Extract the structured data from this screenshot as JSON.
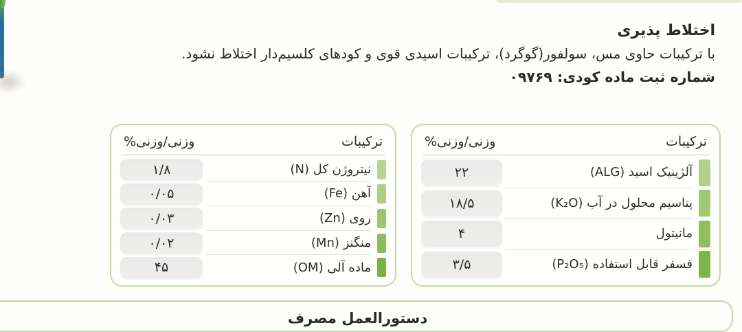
{
  "header": {
    "title": "اختلاط پذیری",
    "body": "با ترکیبات حاوی مس، سولفور(گوگرد)، ترکیبات اسیدی قوی و کودهای کلسیم‌دار اختلاط نشود.",
    "registration_label": "شماره ثبت ماده کودی:",
    "registration_number": "۰۹۷۶۹"
  },
  "composition_tables": {
    "columns": {
      "composition": "ترکیبات",
      "weight_percent": "وزنی/وزنی%"
    },
    "primary": {
      "rows": [
        {
          "label": "آلژینیک اسید (ALG)",
          "value": "۲۲",
          "bar_color": "#afd188"
        },
        {
          "label": "پتاسیم محلول در آب (K₂O)",
          "value": "۱۸/۵",
          "bar_color": "#a1c873"
        },
        {
          "label": "مانیتول",
          "value": "۴",
          "bar_color": "#90bf5d"
        },
        {
          "label": "فسفر قابل استفاده (P₂O₅)",
          "value": "۳/۵",
          "bar_color": "#7eb449"
        }
      ]
    },
    "secondary": {
      "rows": [
        {
          "label": "نیتروژن کل (N)",
          "value": "۱/۸",
          "bar_color": "#b6d492"
        },
        {
          "label": "آهن (Fe)",
          "value": "۰/۰۵",
          "bar_color": "#accf83"
        },
        {
          "label": "روی (Zn)",
          "value": "۰/۰۳",
          "bar_color": "#9dc56f"
        },
        {
          "label": "منگنز (Mn)",
          "value": "۰/۰۲",
          "bar_color": "#8dbc5c"
        },
        {
          "label": "ماده آلی (OM)",
          "value": "۴۵",
          "bar_color": "#7bb246"
        }
      ]
    }
  },
  "bottom_section": {
    "partial_title": "دستورالعمل مصرف"
  },
  "colors": {
    "table_border": "#c3d9a7",
    "value_pill_bg": "#ebebeb",
    "top_edge_green": "#e3efd2",
    "text": "#2b2a28"
  }
}
